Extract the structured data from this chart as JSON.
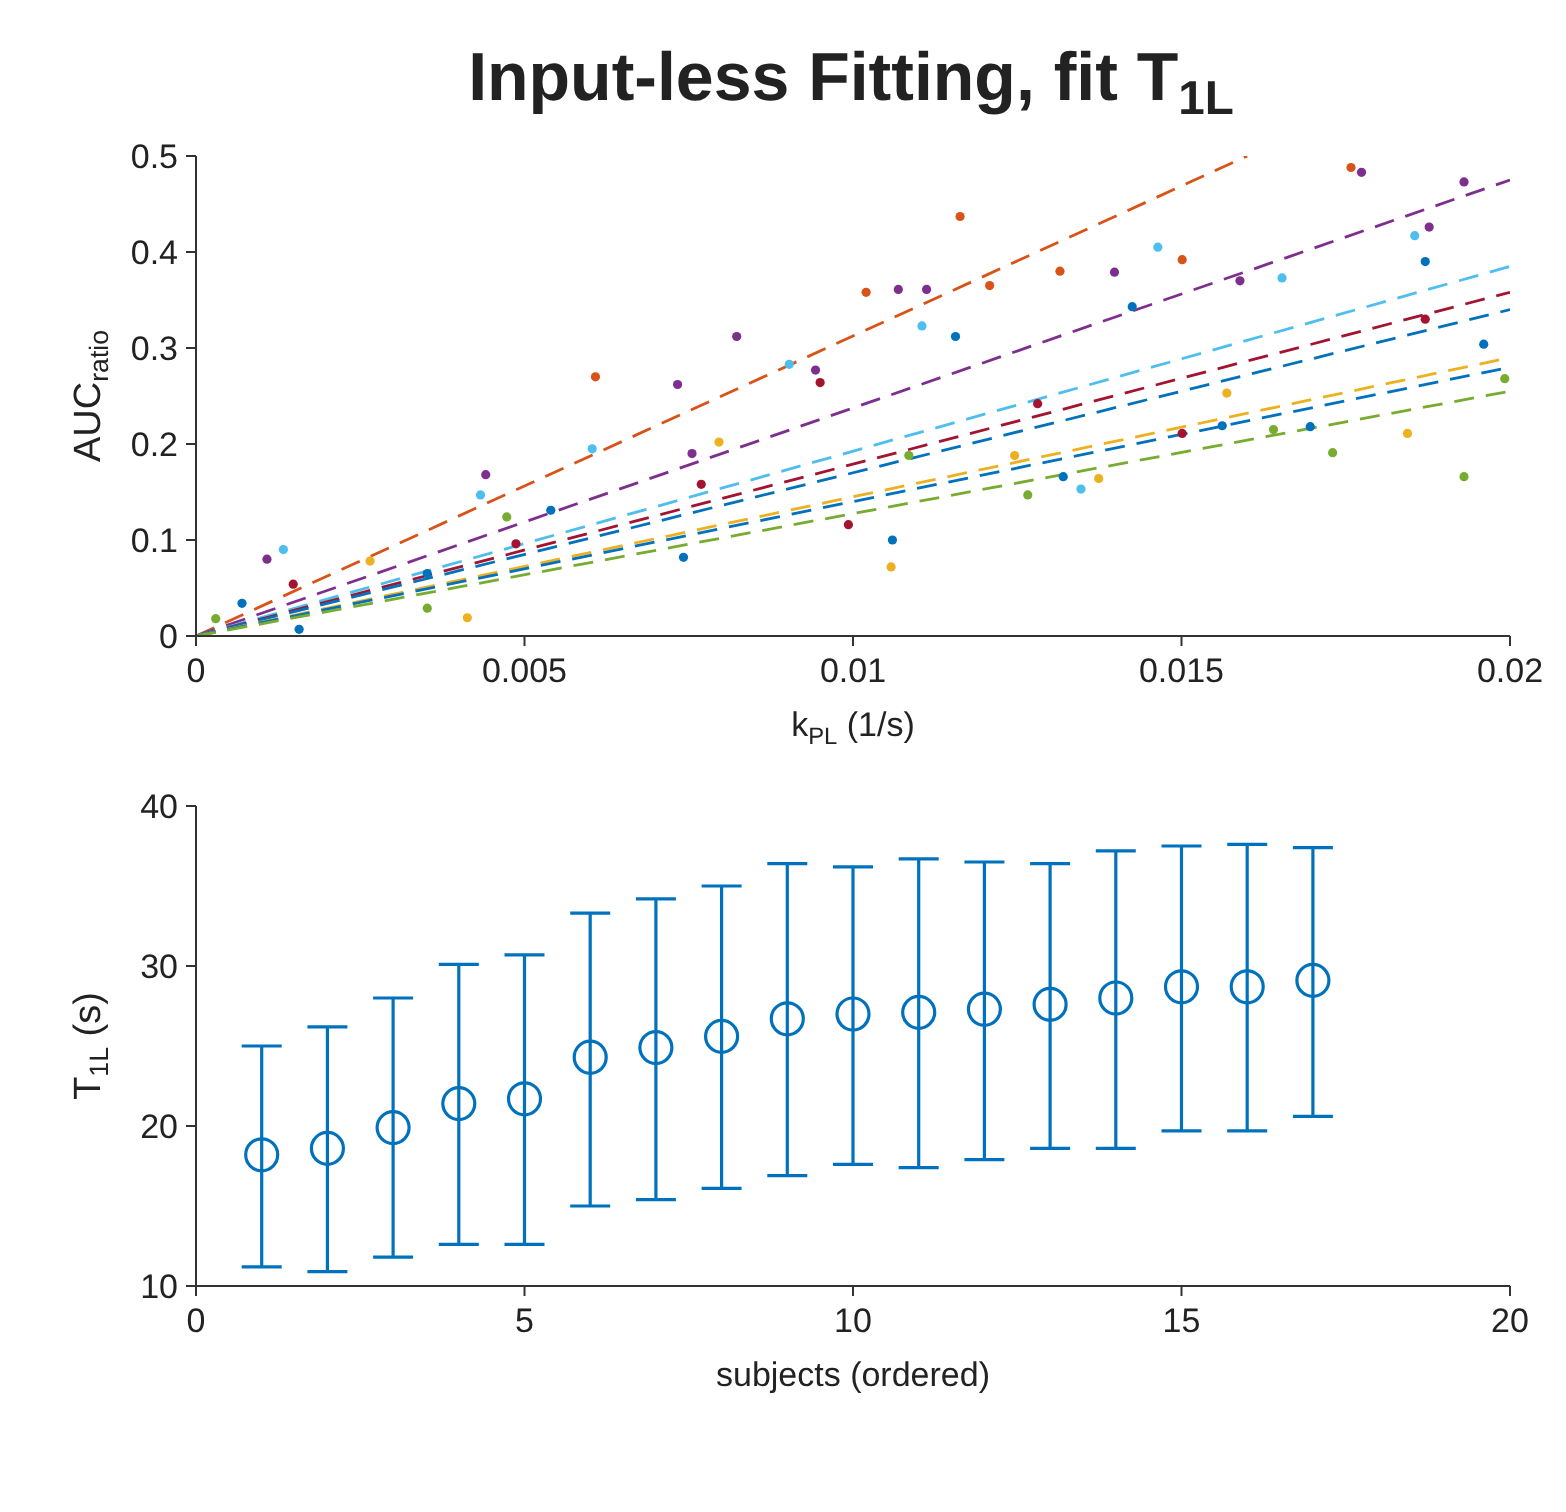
{
  "chart_data": [
    {
      "type": "scatter",
      "title": "Input-less Fitting, fit T$_{1L}$",
      "xlabel": "k$_{PL}$ (1/s)",
      "ylabel": "AUC$_{ratio}$",
      "xlim": [
        0,
        0.02
      ],
      "xticks": [
        0,
        0.005,
        0.01,
        0.015,
        0.02
      ],
      "ylim": [
        0,
        0.5
      ],
      "yticks": [
        0,
        0.1,
        0.2,
        0.3,
        0.4,
        0.5
      ],
      "grid": false,
      "legend": false,
      "marker": "circle",
      "series": [
        {
          "type": "scatter",
          "color": "#d95319",
          "x": [
            0.00608,
            0.0102,
            0.01163,
            0.01208,
            0.01315,
            0.01501,
            0.01758
          ],
          "values": [
            0.27,
            0.358,
            0.437,
            0.365,
            0.38,
            0.392,
            0.488
          ]
        },
        {
          "type": "scatter",
          "color": "#7e2f8e",
          "x": [
            0.00108,
            0.00441,
            0.00733,
            0.00755,
            0.00823,
            0.00943,
            0.01069,
            0.01112,
            0.01398,
            0.01589,
            0.01774,
            0.01877,
            0.0193
          ],
          "values": [
            0.08,
            0.168,
            0.262,
            0.19,
            0.312,
            0.277,
            0.361,
            0.361,
            0.379,
            0.37,
            0.483,
            0.426,
            0.473
          ]
        },
        {
          "type": "scatter",
          "color": "#4dbeee",
          "x": [
            0.00133,
            0.00433,
            0.00603,
            0.00903,
            0.01105,
            0.01347,
            0.01464,
            0.01653,
            0.01855
          ],
          "values": [
            0.09,
            0.147,
            0.195,
            0.283,
            0.323,
            0.153,
            0.405,
            0.373,
            0.417
          ]
        },
        {
          "type": "scatter",
          "color": "#a2142f",
          "x": [
            0.00148,
            0.00487,
            0.00769,
            0.0095,
            0.00993,
            0.01281,
            0.01501,
            0.01871
          ],
          "values": [
            0.054,
            0.096,
            0.158,
            0.264,
            0.116,
            0.242,
            0.211,
            0.33
          ]
        },
        {
          "type": "scatter",
          "color": "#0072bd",
          "x": [
            0.0007,
            0.00157,
            0.00352,
            0.0054,
            0.00742,
            0.0106,
            0.01156,
            0.0132,
            0.01425,
            0.01562,
            0.01696,
            0.01871,
            0.0196
          ],
          "values": [
            0.034,
            0.007,
            0.065,
            0.131,
            0.082,
            0.1,
            0.312,
            0.166,
            0.343,
            0.219,
            0.218,
            0.39,
            0.304
          ]
        },
        {
          "type": "scatter",
          "color": "#edb120",
          "x": [
            0.00265,
            0.00413,
            0.00796,
            0.01058,
            0.01246,
            0.01374,
            0.01569,
            0.01844
          ],
          "values": [
            0.078,
            0.019,
            0.202,
            0.072,
            0.188,
            0.164,
            0.253,
            0.211
          ]
        },
        {
          "type": "scatter",
          "color": "#77ac30",
          "x": [
            0.0003,
            0.00352,
            0.00473,
            0.01085,
            0.01266,
            0.0164,
            0.0173,
            0.0193,
            0.01992
          ],
          "values": [
            0.018,
            0.029,
            0.124,
            0.188,
            0.147,
            0.215,
            0.191,
            0.166,
            0.268
          ]
        },
        {
          "type": "line",
          "color": "#d95319",
          "marker": "none",
          "line_style": "dashed",
          "x": [
            0,
            0.016
          ],
          "values": [
            0,
            0.5
          ]
        },
        {
          "type": "line",
          "color": "#7e2f8e",
          "marker": "none",
          "line_style": "dashed",
          "x": [
            0,
            0.02
          ],
          "values": [
            0,
            0.475
          ]
        },
        {
          "type": "line",
          "color": "#4dbeee",
          "marker": "none",
          "line_style": "dashed",
          "x": [
            0,
            0.02
          ],
          "values": [
            0,
            0.385
          ]
        },
        {
          "type": "line",
          "color": "#a2142f",
          "marker": "none",
          "line_style": "dashed",
          "x": [
            0,
            0.02
          ],
          "values": [
            0,
            0.358
          ]
        },
        {
          "type": "line",
          "color": "#0072bd",
          "marker": "none",
          "line_style": "dashed",
          "x": [
            0,
            0.02
          ],
          "values": [
            0,
            0.34
          ]
        },
        {
          "type": "line",
          "color": "#edb120",
          "marker": "none",
          "line_style": "dashed",
          "x": [
            0,
            0.02
          ],
          "values": [
            0,
            0.29
          ]
        },
        {
          "type": "line",
          "color": "#0072bd",
          "marker": "none",
          "line_style": "dashed",
          "x": [
            0,
            0.02
          ],
          "values": [
            0,
            0.28
          ]
        },
        {
          "type": "line",
          "color": "#77ac30",
          "marker": "none",
          "line_style": "dashed",
          "x": [
            0,
            0.02
          ],
          "values": [
            0,
            0.255
          ]
        }
      ]
    },
    {
      "type": "scatter",
      "xlabel": "subjects (ordered)",
      "ylabel": "T$_{1L}$ (s)",
      "xlim": [
        0,
        20
      ],
      "xticks": [
        0,
        5,
        10,
        15,
        20
      ],
      "ylim": [
        10,
        40
      ],
      "yticks": [
        10,
        20,
        30,
        40
      ],
      "grid": false,
      "legend": false,
      "marker": "circle",
      "series": [
        {
          "type": "scatter",
          "color": "#0072bd",
          "x": [
            1,
            2,
            3,
            4,
            5,
            6,
            7,
            8,
            9,
            10,
            11,
            12,
            13,
            14,
            15,
            16,
            17
          ],
          "values": [
            18.2,
            18.6,
            19.9,
            21.4,
            21.7,
            24.3,
            24.9,
            25.6,
            26.7,
            27.0,
            27.1,
            27.3,
            27.6,
            28.0,
            28.7,
            28.7,
            29.1
          ],
          "errors": [
            [
              11.2,
              25.0
            ],
            [
              10.9,
              26.2
            ],
            [
              11.8,
              28.0
            ],
            [
              12.6,
              30.1
            ],
            [
              12.6,
              30.7
            ],
            [
              15.0,
              33.3
            ],
            [
              15.4,
              34.2
            ],
            [
              16.1,
              35.0
            ],
            [
              16.9,
              36.4
            ],
            [
              17.6,
              36.2
            ],
            [
              17.4,
              36.7
            ],
            [
              17.9,
              36.5
            ],
            [
              18.6,
              36.4
            ],
            [
              18.6,
              37.2
            ],
            [
              19.7,
              37.5
            ],
            [
              19.7,
              37.6
            ],
            [
              20.6,
              37.4
            ]
          ]
        }
      ]
    }
  ]
}
